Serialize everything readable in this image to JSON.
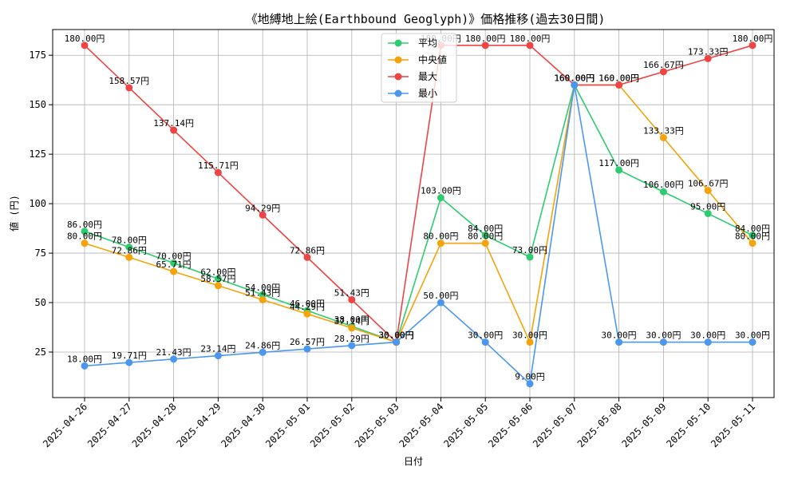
{
  "chart_data": {
    "type": "line",
    "title": "《地縛地上絵(Earthbound Geoglyph)》価格推移(過去30日間)",
    "xlabel": "日付",
    "ylabel": "値 (円)",
    "ylim": [
      2,
      188
    ],
    "yticks": [
      25,
      50,
      75,
      100,
      125,
      150,
      175
    ],
    "grid": true,
    "legend_position": "upper-center",
    "value_suffix": "円",
    "categories": [
      "2025-04-26",
      "2025-04-27",
      "2025-04-28",
      "2025-04-29",
      "2025-04-30",
      "2025-05-01",
      "2025-05-02",
      "2025-05-03",
      "2025-05-04",
      "2025-05-05",
      "2025-05-06",
      "2025-05-07",
      "2025-05-08",
      "2025-05-09",
      "2025-05-10",
      "2025-05-11"
    ],
    "series": [
      {
        "name": "平均",
        "color": "#2ecc71",
        "values": [
          86.0,
          78.0,
          70.0,
          62.0,
          54.0,
          46.0,
          38.0,
          30.0,
          103.0,
          84.0,
          73.0,
          160.0,
          117.0,
          106.0,
          95.0,
          84.0
        ]
      },
      {
        "name": "中央値",
        "color": "#f5a30a",
        "values": [
          80.0,
          72.86,
          65.71,
          58.57,
          51.43,
          44.29,
          37.14,
          30.0,
          80.0,
          80.0,
          30.0,
          160.0,
          160.0,
          133.33,
          106.67,
          80.0
        ]
      },
      {
        "name": "最大",
        "color": "#ee4444",
        "values": [
          180.0,
          158.57,
          137.14,
          115.71,
          94.29,
          72.86,
          51.43,
          30.0,
          180.0,
          180.0,
          180.0,
          160.0,
          160.0,
          166.67,
          173.33,
          180.0
        ]
      },
      {
        "name": "最小",
        "color": "#4b97f0",
        "values": [
          18.0,
          19.71,
          21.43,
          23.14,
          24.86,
          26.57,
          28.29,
          30.0,
          50.0,
          30.0,
          9.0,
          160.0,
          30.0,
          30.0,
          30.0,
          30.0
        ]
      }
    ]
  }
}
